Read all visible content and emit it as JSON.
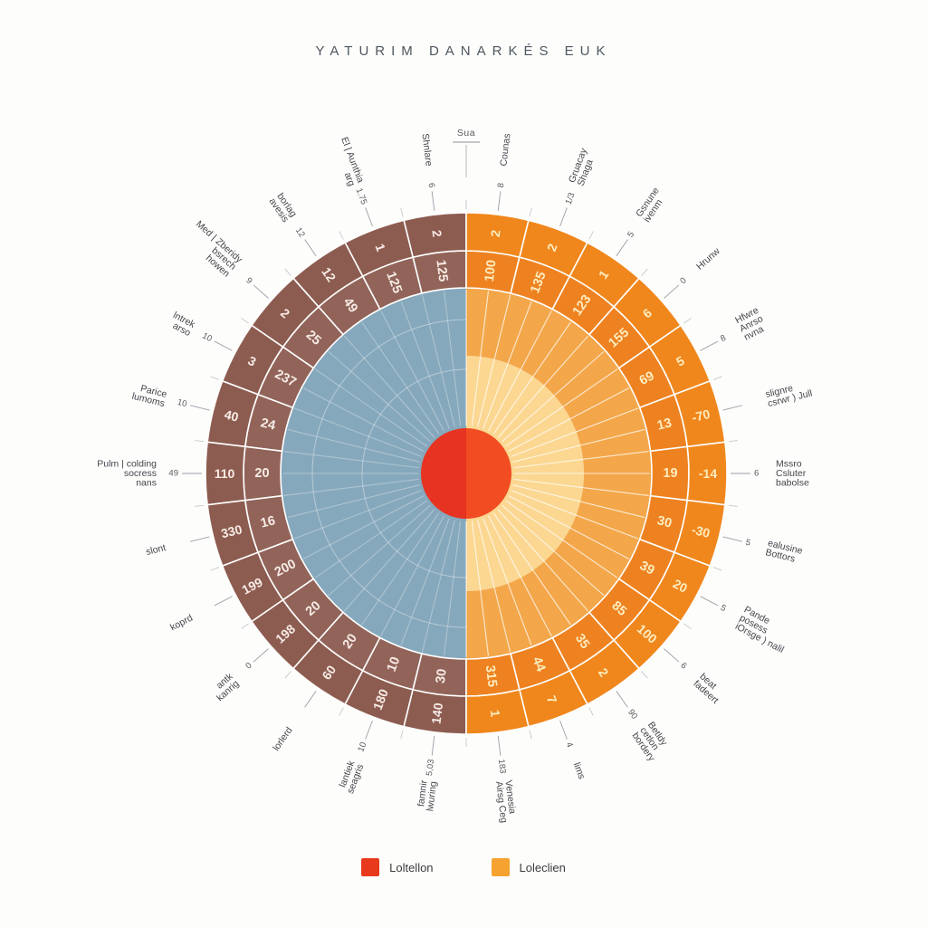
{
  "title": "YATURIM DANARKÉS EUK",
  "top_label": {
    "text": "Sua"
  },
  "legend": {
    "items": [
      {
        "label": "Loltellon",
        "color": "#e8391c"
      },
      {
        "label": "Loleclien",
        "color": "#f5a231"
      }
    ]
  },
  "chart_data": {
    "type": "polar-sunburst",
    "title": "YATURIM DANARKÉS EUK",
    "legend_position": "bottom",
    "colors": {
      "center_left": "#e73321",
      "center_right": "#f14c22",
      "inner_left": "#86a8bc",
      "inner_right_core": "#fbd792",
      "inner_right_mid": "#f3a74a",
      "ring_inner_left": "#926459",
      "ring_outer_left": "#8d5c50",
      "ring_inner_right": "#ee8220",
      "ring_outer_right": "#f0871c",
      "ring_num_left": "#f7ece7",
      "ring_num_right": "#fdedc0",
      "tick": "#9aa0a4",
      "label_text": "#45464b",
      "small_num": "#5a5a5e"
    },
    "left": {
      "outer_ring": [
        2,
        1,
        12,
        2,
        3,
        40,
        110,
        330,
        199,
        198,
        60,
        180,
        140
      ],
      "inner_ring": [
        125,
        125,
        49,
        25,
        237,
        24,
        20,
        16,
        200,
        20,
        20,
        10,
        30
      ],
      "labels": [
        {
          "lines": [
            "Shnlare"
          ],
          "num": "6"
        },
        {
          "lines": [
            "El | Aunthia",
            "arg"
          ],
          "num": "1.75"
        },
        {
          "lines": [
            "borlag",
            "avesis"
          ],
          "num": "12"
        },
        {
          "lines": [
            "Med | Zberidy",
            "bsrech",
            "howen"
          ],
          "num": "9"
        },
        {
          "lines": [
            "lntrek",
            "arso"
          ],
          "num": "10"
        },
        {
          "lines": [
            "Parice",
            "lumoms"
          ],
          "num": "10"
        },
        {
          "lines": [
            "Pulm | colding",
            "socress",
            "nans"
          ],
          "num": "49"
        },
        {
          "lines": [
            "slont"
          ],
          "num": ""
        },
        {
          "lines": [
            "koprd"
          ],
          "num": ""
        },
        {
          "lines": [
            "antk",
            "kanrig"
          ],
          "num": "0"
        },
        {
          "lines": [
            "lorlerd"
          ],
          "num": ""
        },
        {
          "lines": [
            "lantiek",
            "seagris"
          ],
          "num": "10"
        },
        {
          "lines": [
            "famnir",
            "lwuring"
          ],
          "num": "5,03"
        }
      ]
    },
    "right": {
      "outer_ring": [
        2,
        2,
        1,
        6,
        5,
        -70,
        -14,
        -30,
        20,
        100,
        2,
        7,
        1
      ],
      "inner_ring": [
        100,
        135,
        123,
        155,
        69,
        13,
        19,
        30,
        39,
        85,
        35,
        44,
        315
      ],
      "labels": [
        {
          "lines": [
            "Counas"
          ],
          "num": "8"
        },
        {
          "lines": [
            "Gruacay",
            "Shaga"
          ],
          "num": "1/3"
        },
        {
          "lines": [
            "Gsnune",
            "ivenm"
          ],
          "num": "5"
        },
        {
          "lines": [
            "Hrunw"
          ],
          "num": "0"
        },
        {
          "lines": [
            "Hfwre",
            "Anrso",
            "nvna"
          ],
          "num": "8"
        },
        {
          "lines": [
            "slignre",
            "csrwr ) Jull"
          ],
          "num": ""
        },
        {
          "lines": [
            "Mssro",
            "Csluter",
            "babolse"
          ],
          "num": "6"
        },
        {
          "lines": [
            "ealusine",
            "Bottors"
          ],
          "num": "5"
        },
        {
          "lines": [
            "Pande",
            "posess",
            "iOrsge ) nalil"
          ],
          "num": "5"
        },
        {
          "lines": [
            "beat",
            "fadeert"
          ],
          "num": "6"
        },
        {
          "lines": [
            "Betldy",
            "cetlon",
            "bordery"
          ],
          "num": "90"
        },
        {
          "lines": [
            "lims"
          ],
          "num": "4"
        },
        {
          "lines": [
            "Venesia",
            "Airsg Ceg"
          ],
          "num": "183"
        }
      ]
    }
  }
}
